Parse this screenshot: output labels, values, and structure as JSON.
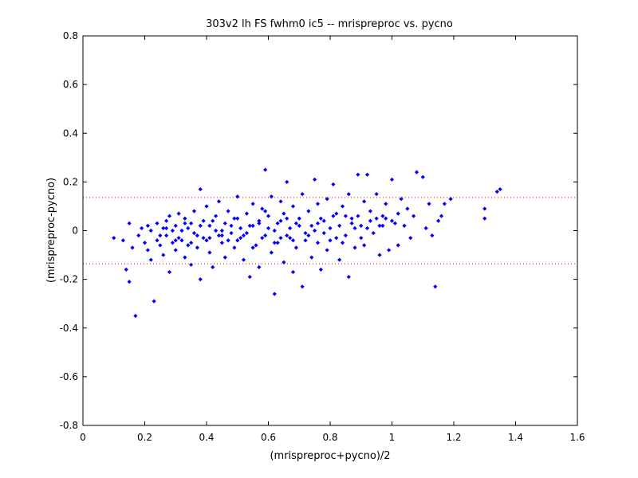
{
  "chart_data": {
    "type": "scatter",
    "title": "303v2 lh FS fwhm0 ic5 -- mrispreproc vs. pycno",
    "xlabel": "(mrispreproc+pycno)/2",
    "ylabel": "(mrispreproc-pycno)",
    "xlim": [
      0,
      1.6
    ],
    "ylim": [
      -0.8,
      0.8
    ],
    "xticks": [
      "0",
      "0.2",
      "0.4",
      "0.6",
      "0.8",
      "1",
      "1.2",
      "1.4",
      "1.6"
    ],
    "yticks": [
      "-0.8",
      "-0.6",
      "-0.4",
      "-0.2",
      "0",
      "0.2",
      "0.4",
      "0.6",
      "0.8"
    ],
    "grid": false,
    "marker_color": "#0000ff",
    "reference_lines": [
      {
        "y": 0.136,
        "color": "#ff0000",
        "style": "dotted"
      },
      {
        "y": -0.136,
        "color": "#ff0000",
        "style": "dotted"
      }
    ],
    "points": [
      [
        0.1,
        -0.03
      ],
      [
        0.13,
        -0.04
      ],
      [
        0.14,
        -0.16
      ],
      [
        0.15,
        0.03
      ],
      [
        0.15,
        -0.21
      ],
      [
        0.17,
        -0.35
      ],
      [
        0.16,
        -0.07
      ],
      [
        0.18,
        -0.02
      ],
      [
        0.19,
        0.01
      ],
      [
        0.2,
        -0.05
      ],
      [
        0.21,
        -0.08
      ],
      [
        0.21,
        0.02
      ],
      [
        0.22,
        0.0
      ],
      [
        0.23,
        -0.29
      ],
      [
        0.22,
        -0.12
      ],
      [
        0.24,
        0.03
      ],
      [
        0.24,
        -0.04
      ],
      [
        0.25,
        -0.06
      ],
      [
        0.26,
        0.01
      ],
      [
        0.26,
        -0.1
      ],
      [
        0.27,
        0.04
      ],
      [
        0.27,
        -0.02
      ],
      [
        0.28,
        -0.17
      ],
      [
        0.28,
        0.06
      ],
      [
        0.29,
        -0.05
      ],
      [
        0.3,
        0.02
      ],
      [
        0.3,
        -0.08
      ],
      [
        0.31,
        0.07
      ],
      [
        0.31,
        -0.03
      ],
      [
        0.32,
        0.0
      ],
      [
        0.33,
        -0.11
      ],
      [
        0.33,
        0.05
      ],
      [
        0.34,
        -0.06
      ],
      [
        0.35,
        0.03
      ],
      [
        0.35,
        -0.14
      ],
      [
        0.36,
        0.08
      ],
      [
        0.36,
        -0.01
      ],
      [
        0.37,
        -0.07
      ],
      [
        0.38,
        0.17
      ],
      [
        0.38,
        -0.2
      ],
      [
        0.39,
        0.04
      ],
      [
        0.39,
        -0.03
      ],
      [
        0.4,
        0.1
      ],
      [
        0.41,
        -0.09
      ],
      [
        0.41,
        0.02
      ],
      [
        0.42,
        -0.15
      ],
      [
        0.43,
        0.06
      ],
      [
        0.44,
        -0.02
      ],
      [
        0.44,
        0.12
      ],
      [
        0.45,
        -0.05
      ],
      [
        0.46,
        0.03
      ],
      [
        0.46,
        -0.11
      ],
      [
        0.47,
        0.08
      ],
      [
        0.48,
        -0.01
      ],
      [
        0.49,
        0.05
      ],
      [
        0.49,
        -0.07
      ],
      [
        0.5,
        0.14
      ],
      [
        0.51,
        -0.03
      ],
      [
        0.51,
        0.01
      ],
      [
        0.52,
        -0.12
      ],
      [
        0.53,
        0.07
      ],
      [
        0.54,
        -0.19
      ],
      [
        0.54,
        0.02
      ],
      [
        0.55,
        0.11
      ],
      [
        0.56,
        -0.06
      ],
      [
        0.57,
        0.04
      ],
      [
        0.57,
        -0.15
      ],
      [
        0.58,
        0.09
      ],
      [
        0.59,
        0.25
      ],
      [
        0.59,
        -0.02
      ],
      [
        0.6,
        0.06
      ],
      [
        0.61,
        -0.09
      ],
      [
        0.61,
        0.14
      ],
      [
        0.62,
        -0.26
      ],
      [
        0.63,
        0.03
      ],
      [
        0.63,
        -0.05
      ],
      [
        0.64,
        0.12
      ],
      [
        0.65,
        -0.13
      ],
      [
        0.65,
        0.07
      ],
      [
        0.66,
        0.2
      ],
      [
        0.67,
        -0.03
      ],
      [
        0.67,
        0.01
      ],
      [
        0.68,
        -0.17
      ],
      [
        0.68,
        0.1
      ],
      [
        0.69,
        -0.07
      ],
      [
        0.7,
        0.05
      ],
      [
        0.71,
        0.15
      ],
      [
        0.71,
        -0.23
      ],
      [
        0.72,
        -0.01
      ],
      [
        0.73,
        0.08
      ],
      [
        0.74,
        -0.11
      ],
      [
        0.74,
        0.02
      ],
      [
        0.75,
        0.21
      ],
      [
        0.76,
        -0.05
      ],
      [
        0.76,
        0.11
      ],
      [
        0.77,
        -0.16
      ],
      [
        0.78,
        0.04
      ],
      [
        0.79,
        0.13
      ],
      [
        0.79,
        -0.08
      ],
      [
        0.8,
        0.01
      ],
      [
        0.81,
        0.19
      ],
      [
        0.82,
        -0.03
      ],
      [
        0.82,
        0.07
      ],
      [
        0.83,
        -0.12
      ],
      [
        0.84,
        0.1
      ],
      [
        0.85,
        -0.02
      ],
      [
        0.86,
        0.15
      ],
      [
        0.86,
        -0.19
      ],
      [
        0.87,
        0.05
      ],
      [
        0.88,
        -0.07
      ],
      [
        0.89,
        0.23
      ],
      [
        0.9,
        0.02
      ],
      [
        0.91,
        0.12
      ],
      [
        0.91,
        -0.06
      ],
      [
        0.92,
        0.23
      ],
      [
        0.93,
        0.08
      ],
      [
        0.94,
        -0.01
      ],
      [
        0.95,
        0.15
      ],
      [
        0.96,
        -0.1
      ],
      [
        0.97,
        0.06
      ],
      [
        0.98,
        0.11
      ],
      [
        0.99,
        -0.08
      ],
      [
        1.0,
        0.21
      ],
      [
        1.01,
        0.03
      ],
      [
        1.02,
        -0.06
      ],
      [
        1.03,
        0.13
      ],
      [
        1.04,
        0.02
      ],
      [
        1.05,
        0.09
      ],
      [
        1.06,
        -0.03
      ],
      [
        1.07,
        0.06
      ],
      [
        1.08,
        0.24
      ],
      [
        1.1,
        0.22
      ],
      [
        1.11,
        0.01
      ],
      [
        1.12,
        0.11
      ],
      [
        1.13,
        -0.02
      ],
      [
        1.14,
        -0.23
      ],
      [
        1.15,
        0.04
      ],
      [
        1.16,
        0.06
      ],
      [
        1.17,
        0.11
      ],
      [
        1.19,
        0.13
      ],
      [
        1.3,
        0.09
      ],
      [
        1.3,
        0.05
      ],
      [
        1.34,
        0.16
      ],
      [
        1.35,
        0.17
      ],
      [
        0.25,
        -0.02
      ],
      [
        0.29,
        0.0
      ],
      [
        0.32,
        -0.04
      ],
      [
        0.34,
        0.01
      ],
      [
        0.37,
        -0.02
      ],
      [
        0.4,
        -0.04
      ],
      [
        0.43,
        0.0
      ],
      [
        0.45,
        -0.02
      ],
      [
        0.48,
        0.02
      ],
      [
        0.5,
        -0.04
      ],
      [
        0.53,
        -0.01
      ],
      [
        0.55,
        0.02
      ],
      [
        0.58,
        -0.03
      ],
      [
        0.6,
        0.01
      ],
      [
        0.62,
        -0.05
      ],
      [
        0.64,
        0.04
      ],
      [
        0.66,
        -0.02
      ],
      [
        0.69,
        0.03
      ],
      [
        0.72,
        -0.04
      ],
      [
        0.75,
        0.0
      ],
      [
        0.77,
        0.05
      ],
      [
        0.8,
        -0.04
      ],
      [
        0.83,
        0.02
      ],
      [
        0.85,
        0.06
      ],
      [
        0.88,
        0.01
      ],
      [
        0.9,
        -0.03
      ],
      [
        0.93,
        0.04
      ],
      [
        0.96,
        0.02
      ],
      [
        0.98,
        0.05
      ],
      [
        1.02,
        0.07
      ],
      [
        0.27,
        0.01
      ],
      [
        0.3,
        -0.04
      ],
      [
        0.33,
        0.03
      ],
      [
        0.35,
        -0.05
      ],
      [
        0.38,
        0.02
      ],
      [
        0.41,
        -0.03
      ],
      [
        0.42,
        0.04
      ],
      [
        0.45,
        0.0
      ],
      [
        0.47,
        -0.04
      ],
      [
        0.5,
        0.05
      ],
      [
        0.52,
        -0.02
      ],
      [
        0.55,
        -0.07
      ],
      [
        0.57,
        0.03
      ],
      [
        0.59,
        0.08
      ],
      [
        0.62,
        0.0
      ],
      [
        0.64,
        -0.03
      ],
      [
        0.66,
        0.05
      ],
      [
        0.68,
        -0.04
      ],
      [
        0.7,
        0.02
      ],
      [
        0.73,
        -0.02
      ],
      [
        0.76,
        0.03
      ],
      [
        0.78,
        -0.01
      ],
      [
        0.81,
        0.06
      ],
      [
        0.84,
        -0.05
      ],
      [
        0.87,
        0.03
      ],
      [
        0.89,
        0.06
      ],
      [
        0.92,
        0.01
      ],
      [
        0.95,
        0.05
      ],
      [
        0.97,
        0.02
      ],
      [
        1.0,
        0.04
      ]
    ]
  }
}
